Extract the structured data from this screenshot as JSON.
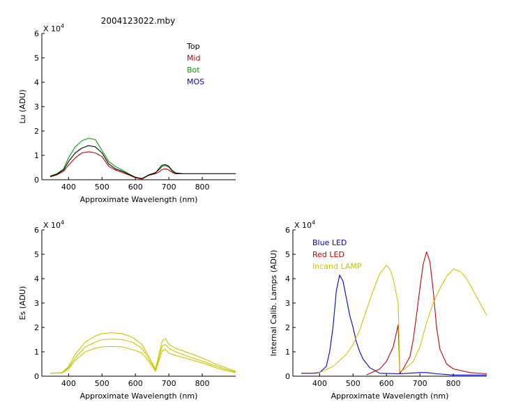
{
  "figure_title": "2004123022.mby",
  "chart_data": [
    {
      "id": "lu",
      "type": "line",
      "xlabel": "Approximate Wavelength (nm)",
      "ylabel": "Lu (ADU)",
      "xlim": [
        320,
        900
      ],
      "ylim": [
        0,
        6
      ],
      "xticks": [
        400,
        500,
        600,
        700,
        800
      ],
      "xtick_labels": [
        "400",
        "500",
        "600",
        "700",
        "800"
      ],
      "yticks": [
        0,
        1,
        2,
        3,
        4,
        5,
        6
      ],
      "ytick_labels": [
        "0",
        "1",
        "2",
        "3",
        "4",
        "5",
        "6"
      ],
      "y_multiplier_base": "X 10",
      "y_multiplier_exp": "4",
      "legend": [
        {
          "label": "Top",
          "color": "#000000"
        },
        {
          "label": "Mid",
          "color": "#cc0000"
        },
        {
          "label": "Bot",
          "color": "#00a000"
        },
        {
          "label": "MOS",
          "color": "#0000cc"
        }
      ],
      "series": [
        {
          "name": "Bot",
          "color": "#00a000",
          "x": [
            345,
            365,
            385,
            400,
            420,
            440,
            460,
            480,
            500,
            520,
            540,
            560,
            580,
            600,
            620,
            640,
            660,
            670,
            680,
            690,
            700,
            710,
            720,
            740
          ],
          "y": [
            0.15,
            0.25,
            0.45,
            0.9,
            1.35,
            1.6,
            1.7,
            1.65,
            1.2,
            0.75,
            0.55,
            0.4,
            0.25,
            0.1,
            0.03,
            0.2,
            0.3,
            0.4,
            0.55,
            0.58,
            0.52,
            0.35,
            0.26,
            0.25
          ]
        },
        {
          "name": "Mid",
          "color": "#cc0000",
          "x": [
            345,
            365,
            385,
            400,
            420,
            440,
            460,
            480,
            500,
            520,
            540,
            560,
            580,
            600,
            620,
            640,
            660,
            670,
            680,
            690,
            700,
            710,
            720,
            740
          ],
          "y": [
            0.12,
            0.2,
            0.35,
            0.6,
            0.9,
            1.1,
            1.15,
            1.1,
            0.95,
            0.55,
            0.4,
            0.3,
            0.2,
            0.08,
            0.03,
            0.18,
            0.25,
            0.32,
            0.42,
            0.45,
            0.4,
            0.3,
            0.24,
            0.25
          ]
        },
        {
          "name": "Top",
          "color": "#000000",
          "x": [
            345,
            365,
            385,
            400,
            420,
            440,
            460,
            480,
            500,
            520,
            540,
            560,
            580,
            600,
            620,
            640,
            660,
            670,
            680,
            690,
            700,
            710,
            720,
            740,
            800,
            900
          ],
          "y": [
            0.14,
            0.22,
            0.4,
            0.75,
            1.1,
            1.3,
            1.4,
            1.35,
            1.1,
            0.65,
            0.45,
            0.35,
            0.22,
            0.1,
            0.05,
            0.2,
            0.28,
            0.45,
            0.6,
            0.62,
            0.55,
            0.38,
            0.28,
            0.25,
            0.25,
            0.25
          ]
        }
      ]
    },
    {
      "id": "es",
      "type": "line",
      "xlabel": "Approximate Wavelength (nm)",
      "ylabel": "Es (ADU)",
      "xlim": [
        320,
        900
      ],
      "ylim": [
        0,
        6
      ],
      "xticks": [
        400,
        500,
        600,
        700,
        800
      ],
      "xtick_labels": [
        "400",
        "500",
        "600",
        "700",
        "800"
      ],
      "yticks": [
        0,
        1,
        2,
        3,
        4,
        5,
        6
      ],
      "ytick_labels": [
        "0",
        "1",
        "2",
        "3",
        "4",
        "5",
        "6"
      ],
      "y_multiplier_base": "X 10",
      "y_multiplier_exp": "4",
      "series": [
        {
          "name": "Es 1",
          "color": "#c8c800",
          "x": [
            345,
            380,
            400,
            420,
            450,
            480,
            500,
            530,
            560,
            590,
            620,
            640,
            660,
            680,
            690,
            700,
            720,
            740,
            760,
            800,
            840,
            880,
            900
          ],
          "y": [
            0.12,
            0.15,
            0.4,
            0.9,
            1.4,
            1.65,
            1.75,
            1.78,
            1.75,
            1.6,
            1.3,
            0.8,
            0.3,
            1.45,
            1.55,
            1.3,
            1.15,
            1.05,
            0.95,
            0.75,
            0.5,
            0.3,
            0.2
          ]
        },
        {
          "name": "Es 2",
          "color": "#c8c800",
          "x": [
            345,
            380,
            400,
            420,
            450,
            480,
            500,
            530,
            560,
            590,
            620,
            640,
            660,
            680,
            690,
            700,
            720,
            740,
            760,
            800,
            840,
            880,
            900
          ],
          "y": [
            0.12,
            0.14,
            0.35,
            0.75,
            1.2,
            1.4,
            1.5,
            1.52,
            1.5,
            1.4,
            1.15,
            0.7,
            0.25,
            1.25,
            1.3,
            1.15,
            1.0,
            0.9,
            0.8,
            0.62,
            0.42,
            0.25,
            0.18
          ]
        },
        {
          "name": "Es 3",
          "color": "#c8c800",
          "x": [
            345,
            380,
            400,
            420,
            450,
            480,
            500,
            530,
            560,
            590,
            620,
            640,
            660,
            680,
            690,
            700,
            720,
            740,
            760,
            800,
            840,
            880,
            900
          ],
          "y": [
            0.12,
            0.13,
            0.3,
            0.65,
            1.0,
            1.15,
            1.2,
            1.22,
            1.2,
            1.1,
            0.95,
            0.6,
            0.2,
            1.05,
            1.1,
            0.95,
            0.85,
            0.78,
            0.7,
            0.55,
            0.35,
            0.2,
            0.15
          ]
        }
      ]
    },
    {
      "id": "lamps",
      "type": "line",
      "xlabel": "Approximate Wavelength (nm)",
      "ylabel": "Internal Calib. Lamps (ADU)",
      "xlim": [
        320,
        900
      ],
      "ylim": [
        0,
        6
      ],
      "xticks": [
        400,
        500,
        600,
        700,
        800
      ],
      "xtick_labels": [
        "400",
        "500",
        "600",
        "700",
        "800"
      ],
      "yticks": [
        0,
        1,
        2,
        3,
        4,
        5,
        6
      ],
      "ytick_labels": [
        "0",
        "1",
        "2",
        "3",
        "4",
        "5",
        "6"
      ],
      "y_multiplier_base": "X 10",
      "y_multiplier_exp": "4",
      "legend": [
        {
          "label": "Blue LED",
          "color": "#0000cc"
        },
        {
          "label": "Red LED",
          "color": "#cc0000"
        },
        {
          "label": "Incand LAMP",
          "color": "#c8c800"
        }
      ],
      "series": [
        {
          "name": "Blue LED",
          "color": "#0000cc",
          "x": [
            345,
            380,
            400,
            420,
            430,
            440,
            450,
            460,
            470,
            480,
            490,
            500,
            510,
            520,
            530,
            550,
            580,
            640,
            700,
            720,
            750,
            800,
            900
          ],
          "y": [
            0.12,
            0.12,
            0.15,
            0.4,
            1.0,
            2.0,
            3.5,
            4.15,
            3.9,
            3.2,
            2.5,
            2.0,
            1.4,
            1.0,
            0.7,
            0.35,
            0.12,
            0.1,
            0.15,
            0.15,
            0.1,
            0.05,
            0.05
          ]
        },
        {
          "name": "Red LED",
          "color": "#cc0000",
          "x": [
            540,
            580,
            600,
            620,
            635,
            640,
            650,
            670,
            680,
            690,
            700,
            710,
            720,
            730,
            740,
            750,
            760,
            780,
            800,
            850,
            900
          ],
          "y": [
            0.05,
            0.3,
            0.6,
            1.2,
            2.1,
            0.1,
            0.3,
            0.8,
            1.5,
            2.5,
            3.6,
            4.6,
            5.1,
            4.7,
            3.5,
            2.0,
            1.1,
            0.5,
            0.3,
            0.15,
            0.1
          ]
        },
        {
          "name": "Incand LAMP",
          "color": "#c8c800",
          "x": [
            400,
            440,
            480,
            500,
            520,
            540,
            560,
            580,
            600,
            610,
            620,
            635,
            640,
            650,
            680,
            700,
            720,
            740,
            760,
            780,
            800,
            820,
            840,
            860,
            880,
            900
          ],
          "y": [
            0.15,
            0.4,
            0.9,
            1.3,
            1.9,
            2.7,
            3.5,
            4.2,
            4.55,
            4.4,
            4.0,
            3.0,
            0.2,
            0.25,
            0.6,
            1.2,
            2.2,
            3.0,
            3.6,
            4.1,
            4.4,
            4.3,
            4.0,
            3.5,
            3.0,
            2.5
          ]
        }
      ]
    }
  ]
}
